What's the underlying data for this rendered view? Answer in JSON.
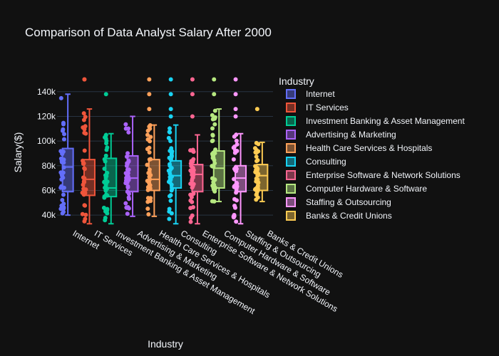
{
  "chart_data": {
    "type": "box",
    "title": "Comparison of Data Analyst Salary After 2000",
    "xlabel": "Industry",
    "ylabel": "Salary($)",
    "ylim": [
      32000,
      152000
    ],
    "yticks": [
      40000,
      60000,
      80000,
      100000,
      120000,
      140000
    ],
    "ytick_labels": [
      "40k",
      "60k",
      "80k",
      "100k",
      "120k",
      "140k"
    ],
    "grid": true,
    "legend_title": "Industry",
    "legend_position": "right",
    "series": [
      {
        "name": "Internet",
        "color": "#636efa",
        "q1": 59000,
        "median": 79000,
        "q3": 94000,
        "lower_fence": 40000,
        "upper_fence": 138000,
        "outliers": []
      },
      {
        "name": "IT Services",
        "color": "#ef553b",
        "q1": 56000,
        "median": 69000,
        "q3": 85000,
        "lower_fence": 33000,
        "upper_fence": 126000,
        "outliers": [
          150000,
          150000
        ]
      },
      {
        "name": "Investment Banking & Asset Management",
        "color": "#00cc96",
        "q1": 55000,
        "median": 62000,
        "q3": 86000,
        "lower_fence": 33000,
        "upper_fence": 106000,
        "outliers": [
          138000
        ]
      },
      {
        "name": "Advertising & Marketing",
        "color": "#ab63fa",
        "q1": 59000,
        "median": 70000,
        "q3": 88000,
        "lower_fence": 39000,
        "upper_fence": 120000,
        "outliers": []
      },
      {
        "name": "Health Care Services & Hospitals",
        "color": "#ffa15a",
        "q1": 60000,
        "median": 69000,
        "q3": 85000,
        "lower_fence": 39000,
        "upper_fence": 113000,
        "outliers": [
          126000,
          138000,
          150000
        ]
      },
      {
        "name": "Consulting",
        "color": "#19d3f3",
        "q1": 62000,
        "median": 72000,
        "q3": 84000,
        "lower_fence": 33000,
        "upper_fence": 113000,
        "outliers": [
          120000,
          126000,
          138000,
          150000
        ]
      },
      {
        "name": "Enterprise Software & Network Solutions",
        "color": "#ff6692",
        "q1": 59000,
        "median": 73000,
        "q3": 81000,
        "lower_fence": 33000,
        "upper_fence": 105000,
        "outliers": [
          120000,
          138000,
          150000
        ]
      },
      {
        "name": "Computer Hardware & Software",
        "color": "#b6e880",
        "q1": 62000,
        "median": 78000,
        "q3": 92000,
        "lower_fence": 51000,
        "upper_fence": 126000,
        "outliers": [
          138000,
          150000
        ]
      },
      {
        "name": "Staffing & Outsourcing",
        "color": "#ff97ff",
        "q1": 59000,
        "median": 70000,
        "q3": 80000,
        "lower_fence": 33000,
        "upper_fence": 106000,
        "outliers": [
          120000,
          126000,
          138000,
          150000
        ]
      },
      {
        "name": "Banks & Credit Unions",
        "color": "#fecb52",
        "q1": 60000,
        "median": 72000,
        "q3": 81000,
        "lower_fence": 51000,
        "upper_fence": 99000,
        "outliers": [
          126000
        ]
      }
    ]
  }
}
